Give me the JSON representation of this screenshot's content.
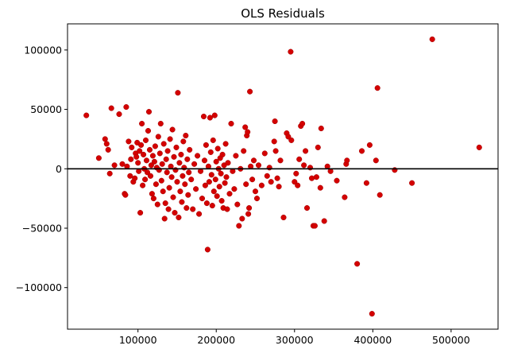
{
  "chart_data": {
    "type": "scatter",
    "title": "OLS Residuals",
    "xlabel": "",
    "ylabel": "",
    "xlim": [
      10000,
      560000
    ],
    "ylim": [
      -135000,
      122000
    ],
    "x_ticks": [
      100000,
      200000,
      300000,
      400000,
      500000
    ],
    "x_tick_labels": [
      "100000",
      "200000",
      "300000",
      "400000",
      "500000"
    ],
    "y_ticks": [
      -100000,
      -50000,
      0,
      50000,
      100000
    ],
    "y_tick_labels": [
      "−100000",
      "−50000",
      "0",
      "50000",
      "100000"
    ],
    "reference_line_y": 0,
    "grid": false,
    "legend": "none",
    "colors": {
      "points": "#d40000",
      "point_edge": "#a00000",
      "reference_line": "#000000",
      "axes": "#000000"
    },
    "series": [
      {
        "points": [
          [
            34000,
            45000
          ],
          [
            50000,
            9000
          ],
          [
            58000,
            25000
          ],
          [
            60000,
            21000
          ],
          [
            62000,
            16000
          ],
          [
            64000,
            -4000
          ],
          [
            66000,
            51000
          ],
          [
            70000,
            3000
          ],
          [
            76000,
            46000
          ],
          [
            80000,
            4000
          ],
          [
            83000,
            -21000
          ],
          [
            84000,
            -22000
          ],
          [
            85000,
            52000
          ],
          [
            86000,
            2000
          ],
          [
            88000,
            23000
          ],
          [
            90000,
            -6000
          ],
          [
            91000,
            8000
          ],
          [
            92000,
            18000
          ],
          [
            94000,
            -11000
          ],
          [
            96000,
            -8000
          ],
          [
            97000,
            13000
          ],
          [
            98000,
            10000
          ],
          [
            99000,
            22000
          ],
          [
            100000,
            5000
          ],
          [
            101000,
            -2000
          ],
          [
            102000,
            15000
          ],
          [
            103000,
            -37000
          ],
          [
            104000,
            20000
          ],
          [
            105000,
            38000
          ],
          [
            106000,
            -14000
          ],
          [
            107000,
            12000
          ],
          [
            108000,
            0
          ],
          [
            109000,
            -9000
          ],
          [
            110000,
            24000
          ],
          [
            111000,
            7000
          ],
          [
            112000,
            -3000
          ],
          [
            113000,
            32000
          ],
          [
            114000,
            48000
          ],
          [
            115000,
            16000
          ],
          [
            116000,
            -6000
          ],
          [
            117000,
            3000
          ],
          [
            118000,
            -21000
          ],
          [
            119000,
            11000
          ],
          [
            120000,
            -25000
          ],
          [
            121000,
            6000
          ],
          [
            122000,
            19000
          ],
          [
            123000,
            -13000
          ],
          [
            124000,
            1000
          ],
          [
            125000,
            -30000
          ],
          [
            126000,
            27000
          ],
          [
            127000,
            -1000
          ],
          [
            128000,
            13000
          ],
          [
            129000,
            38000
          ],
          [
            130000,
            -10000
          ],
          [
            131000,
            4000
          ],
          [
            132000,
            -19000
          ],
          [
            133000,
            21000
          ],
          [
            134000,
            -42000
          ],
          [
            135000,
            -29000
          ],
          [
            136000,
            8000
          ],
          [
            137000,
            -3000
          ],
          [
            138000,
            15000
          ],
          [
            139000,
            -34000
          ],
          [
            140000,
            -16000
          ],
          [
            141000,
            25000
          ],
          [
            142000,
            2000
          ],
          [
            143000,
            -7000
          ],
          [
            144000,
            33000
          ],
          [
            145000,
            -24000
          ],
          [
            146000,
            10000
          ],
          [
            147000,
            -37000
          ],
          [
            148000,
            -1000
          ],
          [
            149000,
            18000
          ],
          [
            150000,
            -11000
          ],
          [
            151000,
            64000
          ],
          [
            152000,
            -41000
          ],
          [
            153000,
            5000
          ],
          [
            154000,
            -19000
          ],
          [
            155000,
            12000
          ],
          [
            156000,
            -28000
          ],
          [
            157000,
            -6000
          ],
          [
            158000,
            23000
          ],
          [
            159000,
            1000
          ],
          [
            160000,
            -13000
          ],
          [
            161000,
            28000
          ],
          [
            162000,
            -33000
          ],
          [
            163000,
            8000
          ],
          [
            164000,
            -22000
          ],
          [
            165000,
            -3000
          ],
          [
            166000,
            16000
          ],
          [
            168000,
            -9000
          ],
          [
            170000,
            -34000
          ],
          [
            172000,
            4000
          ],
          [
            174000,
            -17000
          ],
          [
            176000,
            11000
          ],
          [
            178000,
            -38000
          ],
          [
            180000,
            -2000
          ],
          [
            182000,
            -25000
          ],
          [
            184000,
            44000
          ],
          [
            185000,
            7000
          ],
          [
            186000,
            -14000
          ],
          [
            187000,
            20000
          ],
          [
            188000,
            -29000
          ],
          [
            189000,
            -68000
          ],
          [
            190000,
            2000
          ],
          [
            191000,
            -11000
          ],
          [
            192000,
            43000
          ],
          [
            193000,
            14000
          ],
          [
            194000,
            -5000
          ],
          [
            195000,
            -31000
          ],
          [
            196000,
            24000
          ],
          [
            197000,
            -19000
          ],
          [
            198000,
            45000
          ],
          [
            199000,
            -9000
          ],
          [
            200000,
            6000
          ],
          [
            201000,
            -23000
          ],
          [
            202000,
            17000
          ],
          [
            203000,
            0
          ],
          [
            204000,
            -15000
          ],
          [
            205000,
            9000
          ],
          [
            206000,
            -4000
          ],
          [
            207000,
            -27000
          ],
          [
            208000,
            12000
          ],
          [
            209000,
            -33000
          ],
          [
            210000,
            3000
          ],
          [
            211000,
            -12000
          ],
          [
            212000,
            21000
          ],
          [
            213000,
            -7000
          ],
          [
            214000,
            -34000
          ],
          [
            215000,
            5000
          ],
          [
            217000,
            -21000
          ],
          [
            219000,
            38000
          ],
          [
            221000,
            -2000
          ],
          [
            223000,
            -17000
          ],
          [
            225000,
            11000
          ],
          [
            227000,
            -30000
          ],
          [
            229000,
            -48000
          ],
          [
            231000,
            0
          ],
          [
            233000,
            -42000
          ],
          [
            235000,
            15000
          ],
          [
            237000,
            35000
          ],
          [
            238000,
            -13000
          ],
          [
            239000,
            28000
          ],
          [
            240000,
            31000
          ],
          [
            241000,
            -38000
          ],
          [
            242000,
            -33000
          ],
          [
            243000,
            65000
          ],
          [
            244000,
            2000
          ],
          [
            246000,
            -9000
          ],
          [
            248000,
            7000
          ],
          [
            250000,
            -19000
          ],
          [
            252000,
            -25000
          ],
          [
            254000,
            3000
          ],
          [
            258000,
            -14000
          ],
          [
            262000,
            13000
          ],
          [
            265000,
            -6000
          ],
          [
            268000,
            1000
          ],
          [
            270000,
            -11000
          ],
          [
            274000,
            23000
          ],
          [
            275000,
            40000
          ],
          [
            276000,
            15000
          ],
          [
            278000,
            -8000
          ],
          [
            280000,
            -15000
          ],
          [
            282000,
            7000
          ],
          [
            286000,
            -41000
          ],
          [
            290000,
            30000
          ],
          [
            292000,
            27000
          ],
          [
            295000,
            98500
          ],
          [
            296000,
            24000
          ],
          [
            300000,
            -11000
          ],
          [
            302000,
            -4000
          ],
          [
            304000,
            -14000
          ],
          [
            306000,
            8000
          ],
          [
            308000,
            36000
          ],
          [
            310000,
            38000
          ],
          [
            312000,
            3000
          ],
          [
            314000,
            15000
          ],
          [
            316000,
            -33000
          ],
          [
            320000,
            1000
          ],
          [
            322000,
            -8000
          ],
          [
            324000,
            -48000
          ],
          [
            326000,
            -48000
          ],
          [
            328000,
            -7000
          ],
          [
            330000,
            18000
          ],
          [
            333000,
            -16000
          ],
          [
            334000,
            34000
          ],
          [
            338000,
            -44000
          ],
          [
            342000,
            2000
          ],
          [
            346000,
            -2000
          ],
          [
            354000,
            -10000
          ],
          [
            364000,
            -24000
          ],
          [
            366000,
            4000
          ],
          [
            367000,
            7000
          ],
          [
            380000,
            -80000
          ],
          [
            386000,
            15000
          ],
          [
            392000,
            -12000
          ],
          [
            396000,
            20000
          ],
          [
            399000,
            -122000
          ],
          [
            404000,
            7000
          ],
          [
            406000,
            68000
          ],
          [
            409000,
            -22000
          ],
          [
            428000,
            -1000
          ],
          [
            450000,
            -12000
          ],
          [
            476000,
            109000
          ],
          [
            536000,
            18000
          ]
        ]
      }
    ]
  }
}
